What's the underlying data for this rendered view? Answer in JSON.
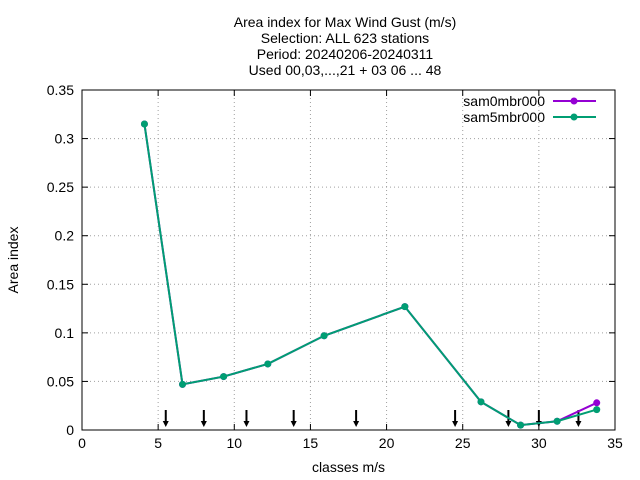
{
  "chart_data": {
    "type": "line",
    "title_lines": [
      "Area index  for Max Wind Gust (m/s)",
      "Selection: ALL    623 stations",
      "Period: 20240206-20240311",
      "Used 00,03,...,21 + 03 06 ... 48"
    ],
    "xlabel": "classes m/s",
    "ylabel": "Area index",
    "xlim": [
      0,
      35
    ],
    "ylim": [
      0,
      0.35
    ],
    "xticks": [
      0,
      5,
      10,
      15,
      20,
      25,
      30,
      35
    ],
    "yticks": [
      0,
      0.05,
      0.1,
      0.15,
      0.2,
      0.25,
      0.3,
      0.35
    ],
    "xtick_labels": [
      "0",
      "5",
      "10",
      "15",
      "20",
      "25",
      "30",
      "35"
    ],
    "ytick_labels": [
      "0",
      "0.05",
      "0.1",
      "0.15",
      "0.2",
      "0.25",
      "0.3",
      "0.35"
    ],
    "grid": true,
    "legend_position": "top-right",
    "class_markers": [
      5.5,
      8.0,
      10.8,
      13.9,
      18.0,
      24.5,
      28.0,
      30.0,
      32.6
    ],
    "series": [
      {
        "name": "sam0mbr000",
        "color": "#9400d3",
        "x": [
          4.1,
          6.6,
          9.3,
          12.2,
          15.9,
          21.2,
          26.2,
          28.8,
          31.2,
          33.8
        ],
        "y": [
          0.315,
          0.047,
          0.055,
          0.068,
          0.097,
          0.127,
          0.029,
          0.005,
          0.009,
          0.028
        ]
      },
      {
        "name": "sam5mbr000",
        "color": "#009e73",
        "x": [
          4.1,
          6.6,
          9.3,
          12.2,
          15.9,
          21.2,
          26.2,
          28.8,
          31.2,
          33.8
        ],
        "y": [
          0.315,
          0.047,
          0.055,
          0.068,
          0.097,
          0.127,
          0.029,
          0.005,
          0.009,
          0.021
        ]
      }
    ]
  }
}
